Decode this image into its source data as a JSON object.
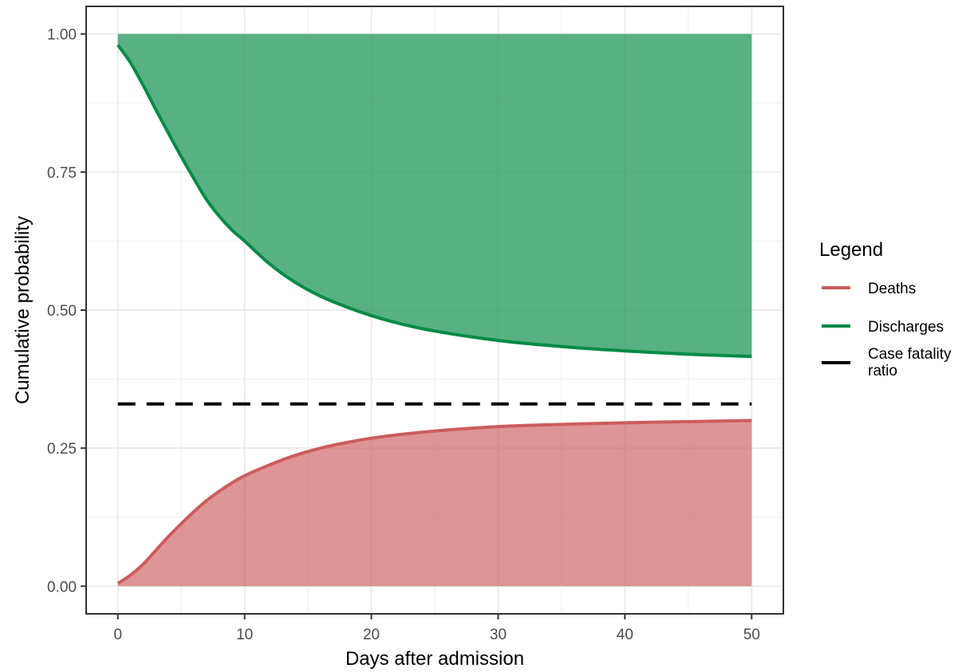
{
  "chart_data": {
    "type": "area",
    "title": "",
    "xlabel": "Days after admission",
    "ylabel": "Cumulative probability",
    "xlim": [
      -2.5,
      52.5
    ],
    "ylim": [
      -0.05,
      1.05
    ],
    "x_ticks": [
      0,
      10,
      20,
      30,
      40,
      50
    ],
    "x_tick_labels": [
      "0",
      "10",
      "20",
      "30",
      "40",
      "50"
    ],
    "y_ticks": [
      0,
      0.25,
      0.5,
      0.75,
      1.0
    ],
    "y_tick_labels": [
      "0.00",
      "0.25",
      "0.50",
      "0.75",
      "1.00"
    ],
    "grid": true,
    "legend": {
      "title": "Legend",
      "position": "right",
      "entries": [
        {
          "label": "Deaths",
          "color": "#cd5c5c",
          "style": "solid"
        },
        {
          "label": "Discharges",
          "color": "#008b45",
          "style": "solid"
        },
        {
          "label_lines": [
            "Case fatality",
            "ratio"
          ],
          "color": "#000000",
          "style": "dashed"
        }
      ]
    },
    "series": [
      {
        "name": "Deaths",
        "color": "#cd5c5c",
        "fill": "#cd5c5c",
        "fill_opacity": 0.65,
        "fill_to": 0,
        "x": [
          0,
          1,
          2,
          3,
          4,
          5,
          6,
          7,
          8,
          9,
          10,
          12,
          14,
          16,
          18,
          20,
          22,
          25,
          30,
          35,
          40,
          45,
          50
        ],
        "y": [
          0.005,
          0.02,
          0.04,
          0.065,
          0.09,
          0.113,
          0.135,
          0.155,
          0.172,
          0.187,
          0.2,
          0.22,
          0.237,
          0.25,
          0.26,
          0.268,
          0.274,
          0.281,
          0.289,
          0.293,
          0.296,
          0.298,
          0.3
        ]
      },
      {
        "name": "Discharges",
        "color": "#008b45",
        "fill": "#2e9e63",
        "fill_opacity": 0.8,
        "fill_to": 1,
        "x": [
          0,
          1,
          2,
          3,
          4,
          5,
          6,
          7,
          8,
          9,
          10,
          12,
          14,
          16,
          18,
          20,
          22,
          25,
          30,
          35,
          40,
          45,
          50
        ],
        "y": [
          0.98,
          0.948,
          0.907,
          0.863,
          0.82,
          0.778,
          0.738,
          0.7,
          0.67,
          0.645,
          0.625,
          0.583,
          0.55,
          0.525,
          0.506,
          0.49,
          0.477,
          0.462,
          0.445,
          0.434,
          0.426,
          0.42,
          0.416
        ]
      },
      {
        "name": "Case fatality ratio",
        "color": "#000000",
        "style": "dashed",
        "x": [
          0,
          50
        ],
        "y": [
          0.33,
          0.33
        ]
      }
    ]
  }
}
